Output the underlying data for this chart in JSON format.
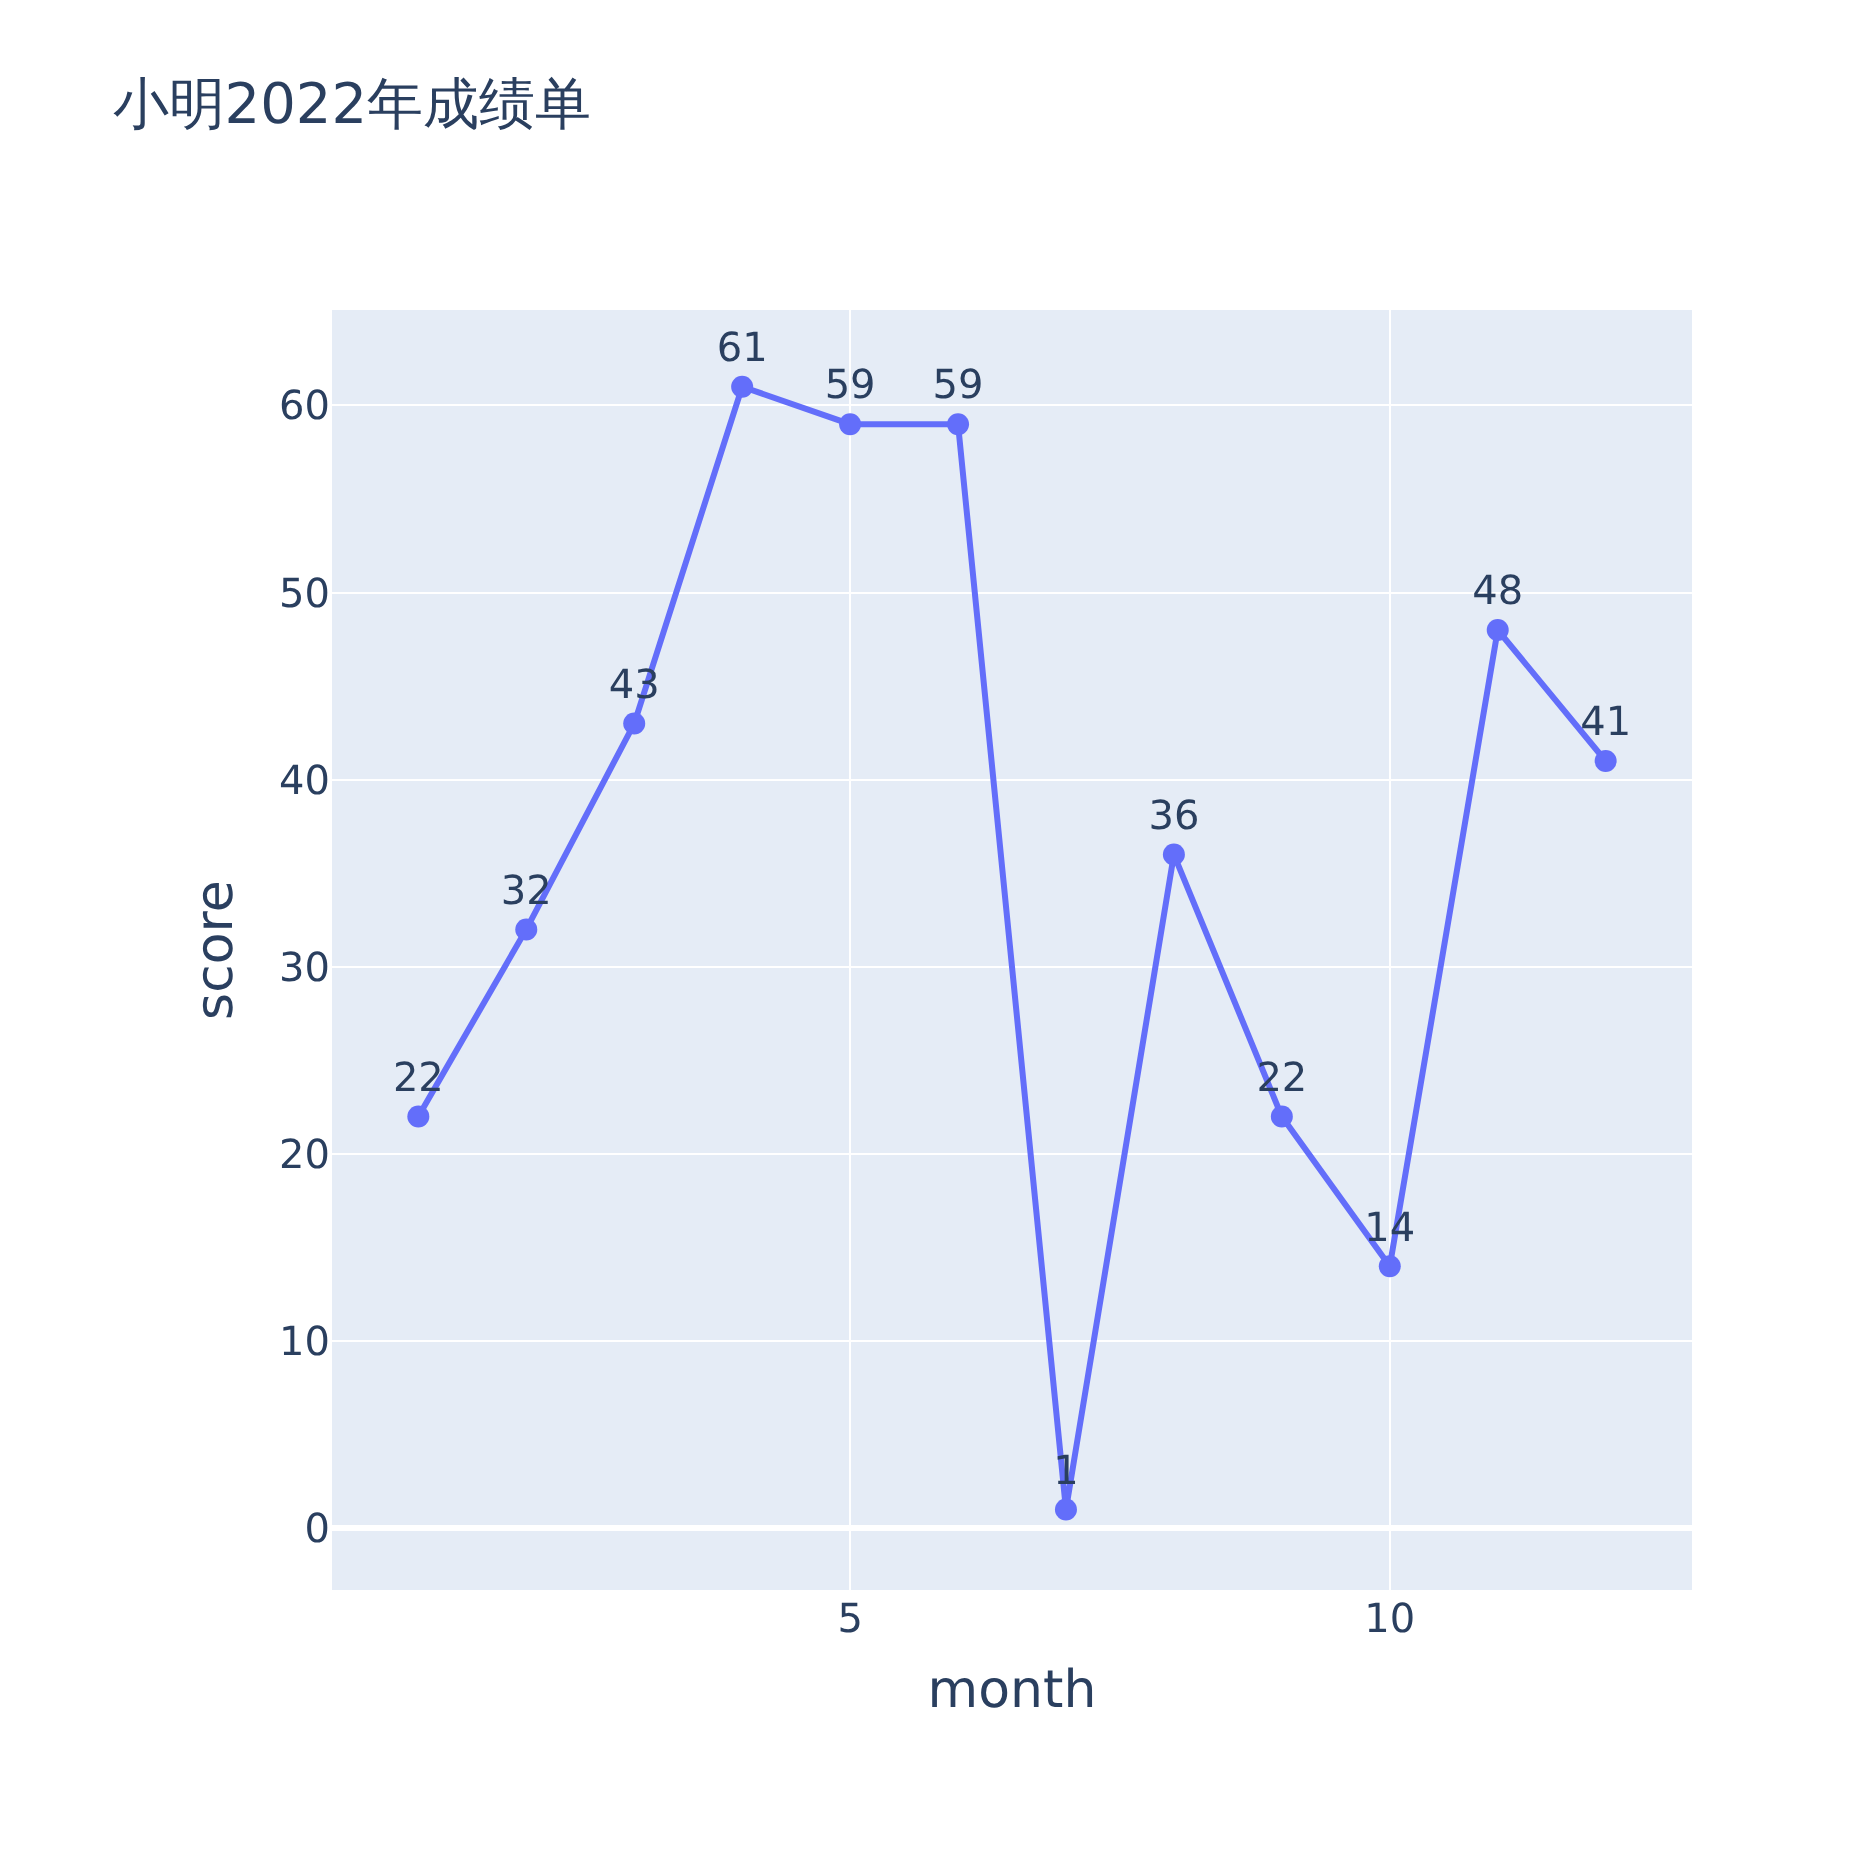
{
  "chart_data": {
    "type": "line",
    "title": "小明2022年成绩单",
    "xlabel": "month",
    "ylabel": "score",
    "x": [
      1,
      2,
      3,
      4,
      5,
      6,
      7,
      8,
      9,
      10,
      11,
      12
    ],
    "series": [
      {
        "color": "#636efa",
        "values": [
          22,
          32,
          43,
          61,
          59,
          59,
          1,
          36,
          22,
          14,
          48,
          41
        ]
      }
    ],
    "xlim": [
      0.2,
      12.8
    ],
    "ylim": [
      -3.3,
      65.1
    ],
    "xticks": [
      5,
      10
    ],
    "yticks": [
      0,
      10,
      20,
      30,
      40,
      50,
      60
    ],
    "grid": true,
    "marker": "circle",
    "line_style": "solid",
    "data_labels": true
  }
}
